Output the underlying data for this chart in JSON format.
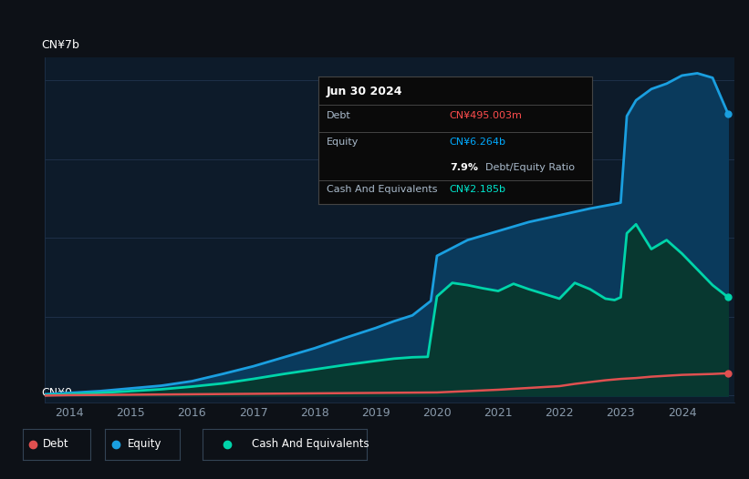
{
  "background_color": "#0d1117",
  "plot_bg_color": "#0d1b2a",
  "title_box": {
    "date": "Jun 30 2024",
    "debt_label": "Debt",
    "debt_value": "CN¥495.003m",
    "debt_color": "#ff4d4d",
    "equity_label": "Equity",
    "equity_value": "CN¥6.264b",
    "equity_color": "#00aaff",
    "ratio_value": "7.9%",
    "ratio_label": "Debt/Equity Ratio",
    "cash_label": "Cash And Equivalents",
    "cash_value": "CN¥2.185b",
    "cash_color": "#00e5cc"
  },
  "ylabel_top": "CN¥7b",
  "ylabel_bottom": "CN¥0",
  "xlim": [
    2013.6,
    2024.85
  ],
  "ylim": [
    -0.15,
    7.5
  ],
  "years": [
    2014,
    2015,
    2016,
    2017,
    2018,
    2019,
    2020,
    2021,
    2022,
    2023,
    2024
  ],
  "equity_x": [
    2013.6,
    2014.0,
    2014.5,
    2015.0,
    2015.5,
    2016.0,
    2016.5,
    2017.0,
    2017.5,
    2018.0,
    2018.5,
    2019.0,
    2019.3,
    2019.6,
    2019.9,
    2020.0,
    2020.5,
    2021.0,
    2021.5,
    2022.0,
    2022.5,
    2022.9,
    2023.0,
    2023.1,
    2023.25,
    2023.5,
    2023.75,
    2024.0,
    2024.25,
    2024.5,
    2024.75
  ],
  "equity_y": [
    0.03,
    0.06,
    0.1,
    0.16,
    0.22,
    0.32,
    0.48,
    0.65,
    0.85,
    1.05,
    1.28,
    1.5,
    1.65,
    1.78,
    2.1,
    3.1,
    3.45,
    3.65,
    3.85,
    4.0,
    4.15,
    4.25,
    4.28,
    6.2,
    6.55,
    6.8,
    6.92,
    7.1,
    7.15,
    7.05,
    6.26
  ],
  "equity_color": "#1a9fe0",
  "equity_fill_color": "#0a3a5c",
  "cash_x": [
    2013.6,
    2014.0,
    2014.5,
    2015.0,
    2015.5,
    2016.0,
    2016.5,
    2017.0,
    2017.5,
    2018.0,
    2018.5,
    2019.0,
    2019.3,
    2019.6,
    2019.85,
    2020.0,
    2020.25,
    2020.5,
    2020.75,
    2021.0,
    2021.25,
    2021.5,
    2022.0,
    2022.25,
    2022.5,
    2022.75,
    2022.9,
    2023.0,
    2023.1,
    2023.25,
    2023.5,
    2023.75,
    2024.0,
    2024.25,
    2024.5,
    2024.75
  ],
  "cash_y": [
    0.01,
    0.03,
    0.06,
    0.1,
    0.14,
    0.2,
    0.27,
    0.37,
    0.48,
    0.58,
    0.68,
    0.77,
    0.82,
    0.85,
    0.86,
    2.2,
    2.5,
    2.45,
    2.38,
    2.32,
    2.48,
    2.36,
    2.15,
    2.5,
    2.36,
    2.15,
    2.12,
    2.18,
    3.6,
    3.8,
    3.25,
    3.45,
    3.15,
    2.8,
    2.45,
    2.185
  ],
  "cash_color": "#00d4aa",
  "cash_fill_color": "#083830",
  "debt_x": [
    2013.6,
    2014.0,
    2015.0,
    2016.0,
    2017.0,
    2018.0,
    2018.5,
    2019.0,
    2019.5,
    2020.0,
    2020.5,
    2021.0,
    2021.5,
    2022.0,
    2022.25,
    2022.5,
    2022.75,
    2023.0,
    2023.25,
    2023.5,
    2023.75,
    2024.0,
    2024.25,
    2024.5,
    2024.75
  ],
  "debt_y": [
    0.0,
    0.01,
    0.02,
    0.03,
    0.04,
    0.05,
    0.055,
    0.06,
    0.065,
    0.07,
    0.1,
    0.13,
    0.17,
    0.21,
    0.26,
    0.3,
    0.34,
    0.37,
    0.39,
    0.42,
    0.44,
    0.46,
    0.47,
    0.48,
    0.495
  ],
  "debt_color": "#e05050",
  "grid_color": "#1e3048",
  "grid_y_values": [
    0,
    1.75,
    3.5,
    5.25,
    7.0
  ],
  "tick_color": "#8899aa",
  "legend_entries": [
    {
      "label": "Debt",
      "color": "#e05050"
    },
    {
      "label": "Equity",
      "color": "#1a9fe0"
    },
    {
      "label": "Cash And Equivalents",
      "color": "#00d4aa"
    }
  ]
}
